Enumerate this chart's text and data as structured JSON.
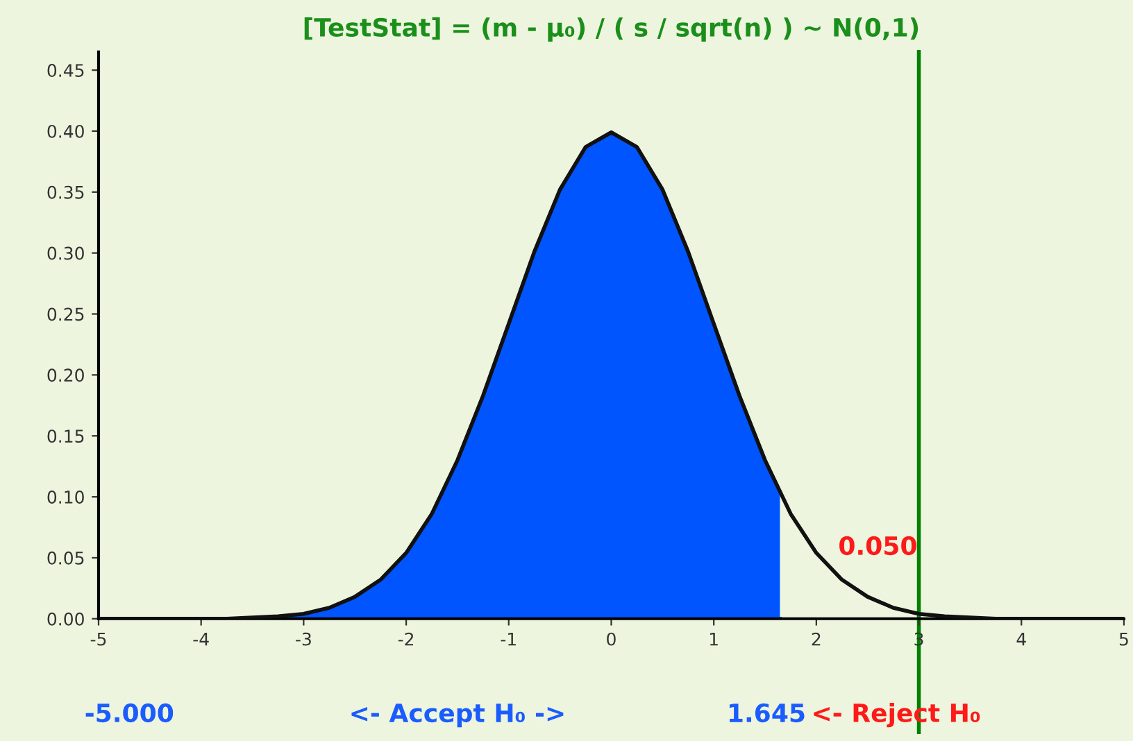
{
  "chart_data": {
    "type": "line",
    "title": "[TestStat] = (m - μ₀) / ( s / sqrt(n) ) ~ N(0,1)",
    "series": [
      {
        "type": "area",
        "color": "#0055ff",
        "x": [
          -5,
          -4.5,
          -4,
          -3.75,
          -3.5,
          -3.25,
          -3,
          -2.75,
          -2.5,
          -2.25,
          -2,
          -1.75,
          -1.5,
          -1.25,
          -1,
          -0.75,
          -0.5,
          -0.25,
          0,
          0.25,
          0.5,
          0.75,
          1,
          1.25,
          1.5,
          1.645
        ],
        "values": [
          0.0,
          0.0,
          0.0,
          0.0,
          0.001,
          0.002,
          0.004,
          0.009,
          0.018,
          0.032,
          0.054,
          0.086,
          0.13,
          0.183,
          0.242,
          0.301,
          0.352,
          0.387,
          0.399,
          0.387,
          0.352,
          0.301,
          0.242,
          0.183,
          0.13,
          0.103
        ]
      },
      {
        "color": "#111111",
        "x": [
          -5,
          -4.5,
          -4,
          -3.75,
          -3.5,
          -3.25,
          -3,
          -2.75,
          -2.5,
          -2.25,
          -2,
          -1.75,
          -1.5,
          -1.25,
          -1,
          -0.75,
          -0.5,
          -0.25,
          0,
          0.25,
          0.5,
          0.75,
          1,
          1.25,
          1.5,
          1.75,
          2,
          2.25,
          2.5,
          2.75,
          3,
          3.25,
          3.5,
          3.75,
          4,
          4.5,
          5
        ],
        "values": [
          0.0,
          0.0,
          0.0,
          0.0,
          0.001,
          0.002,
          0.004,
          0.009,
          0.018,
          0.032,
          0.054,
          0.086,
          0.13,
          0.183,
          0.242,
          0.301,
          0.352,
          0.387,
          0.399,
          0.387,
          0.352,
          0.301,
          0.242,
          0.183,
          0.13,
          0.086,
          0.054,
          0.032,
          0.018,
          0.009,
          0.004,
          0.002,
          0.001,
          0.0,
          0.0,
          0.0,
          0.0
        ]
      }
    ],
    "xlim": [
      -5,
      5
    ],
    "xticks": [
      -5,
      -4,
      -3,
      -2,
      -1,
      0,
      1,
      2,
      3,
      4,
      5
    ],
    "ylim": [
      0,
      0.465
    ],
    "yticks": [
      {
        "value": 0,
        "label": "0.00"
      },
      {
        "value": 0.05,
        "label": "0.05"
      },
      {
        "value": 0.1,
        "label": "0.10"
      },
      {
        "value": 0.15,
        "label": "0.15"
      },
      {
        "value": 0.2,
        "label": "0.20"
      },
      {
        "value": 0.25,
        "label": "0.25"
      },
      {
        "value": 0.3,
        "label": "0.30"
      },
      {
        "value": 0.35,
        "label": "0.35"
      },
      {
        "value": 0.4,
        "label": "0.40"
      },
      {
        "value": 0.45,
        "label": "0.45"
      }
    ],
    "ref_lines": [
      {
        "axis": "x",
        "value": 3,
        "label": null,
        "color": "#008000"
      }
    ],
    "annotations": [
      "0.050",
      "-5.000",
      "<- Accept H₀ ->",
      "1.645",
      "<- Reject H₀"
    ],
    "grid": false,
    "legend": false,
    "marker": "none",
    "line_style": "solid"
  }
}
